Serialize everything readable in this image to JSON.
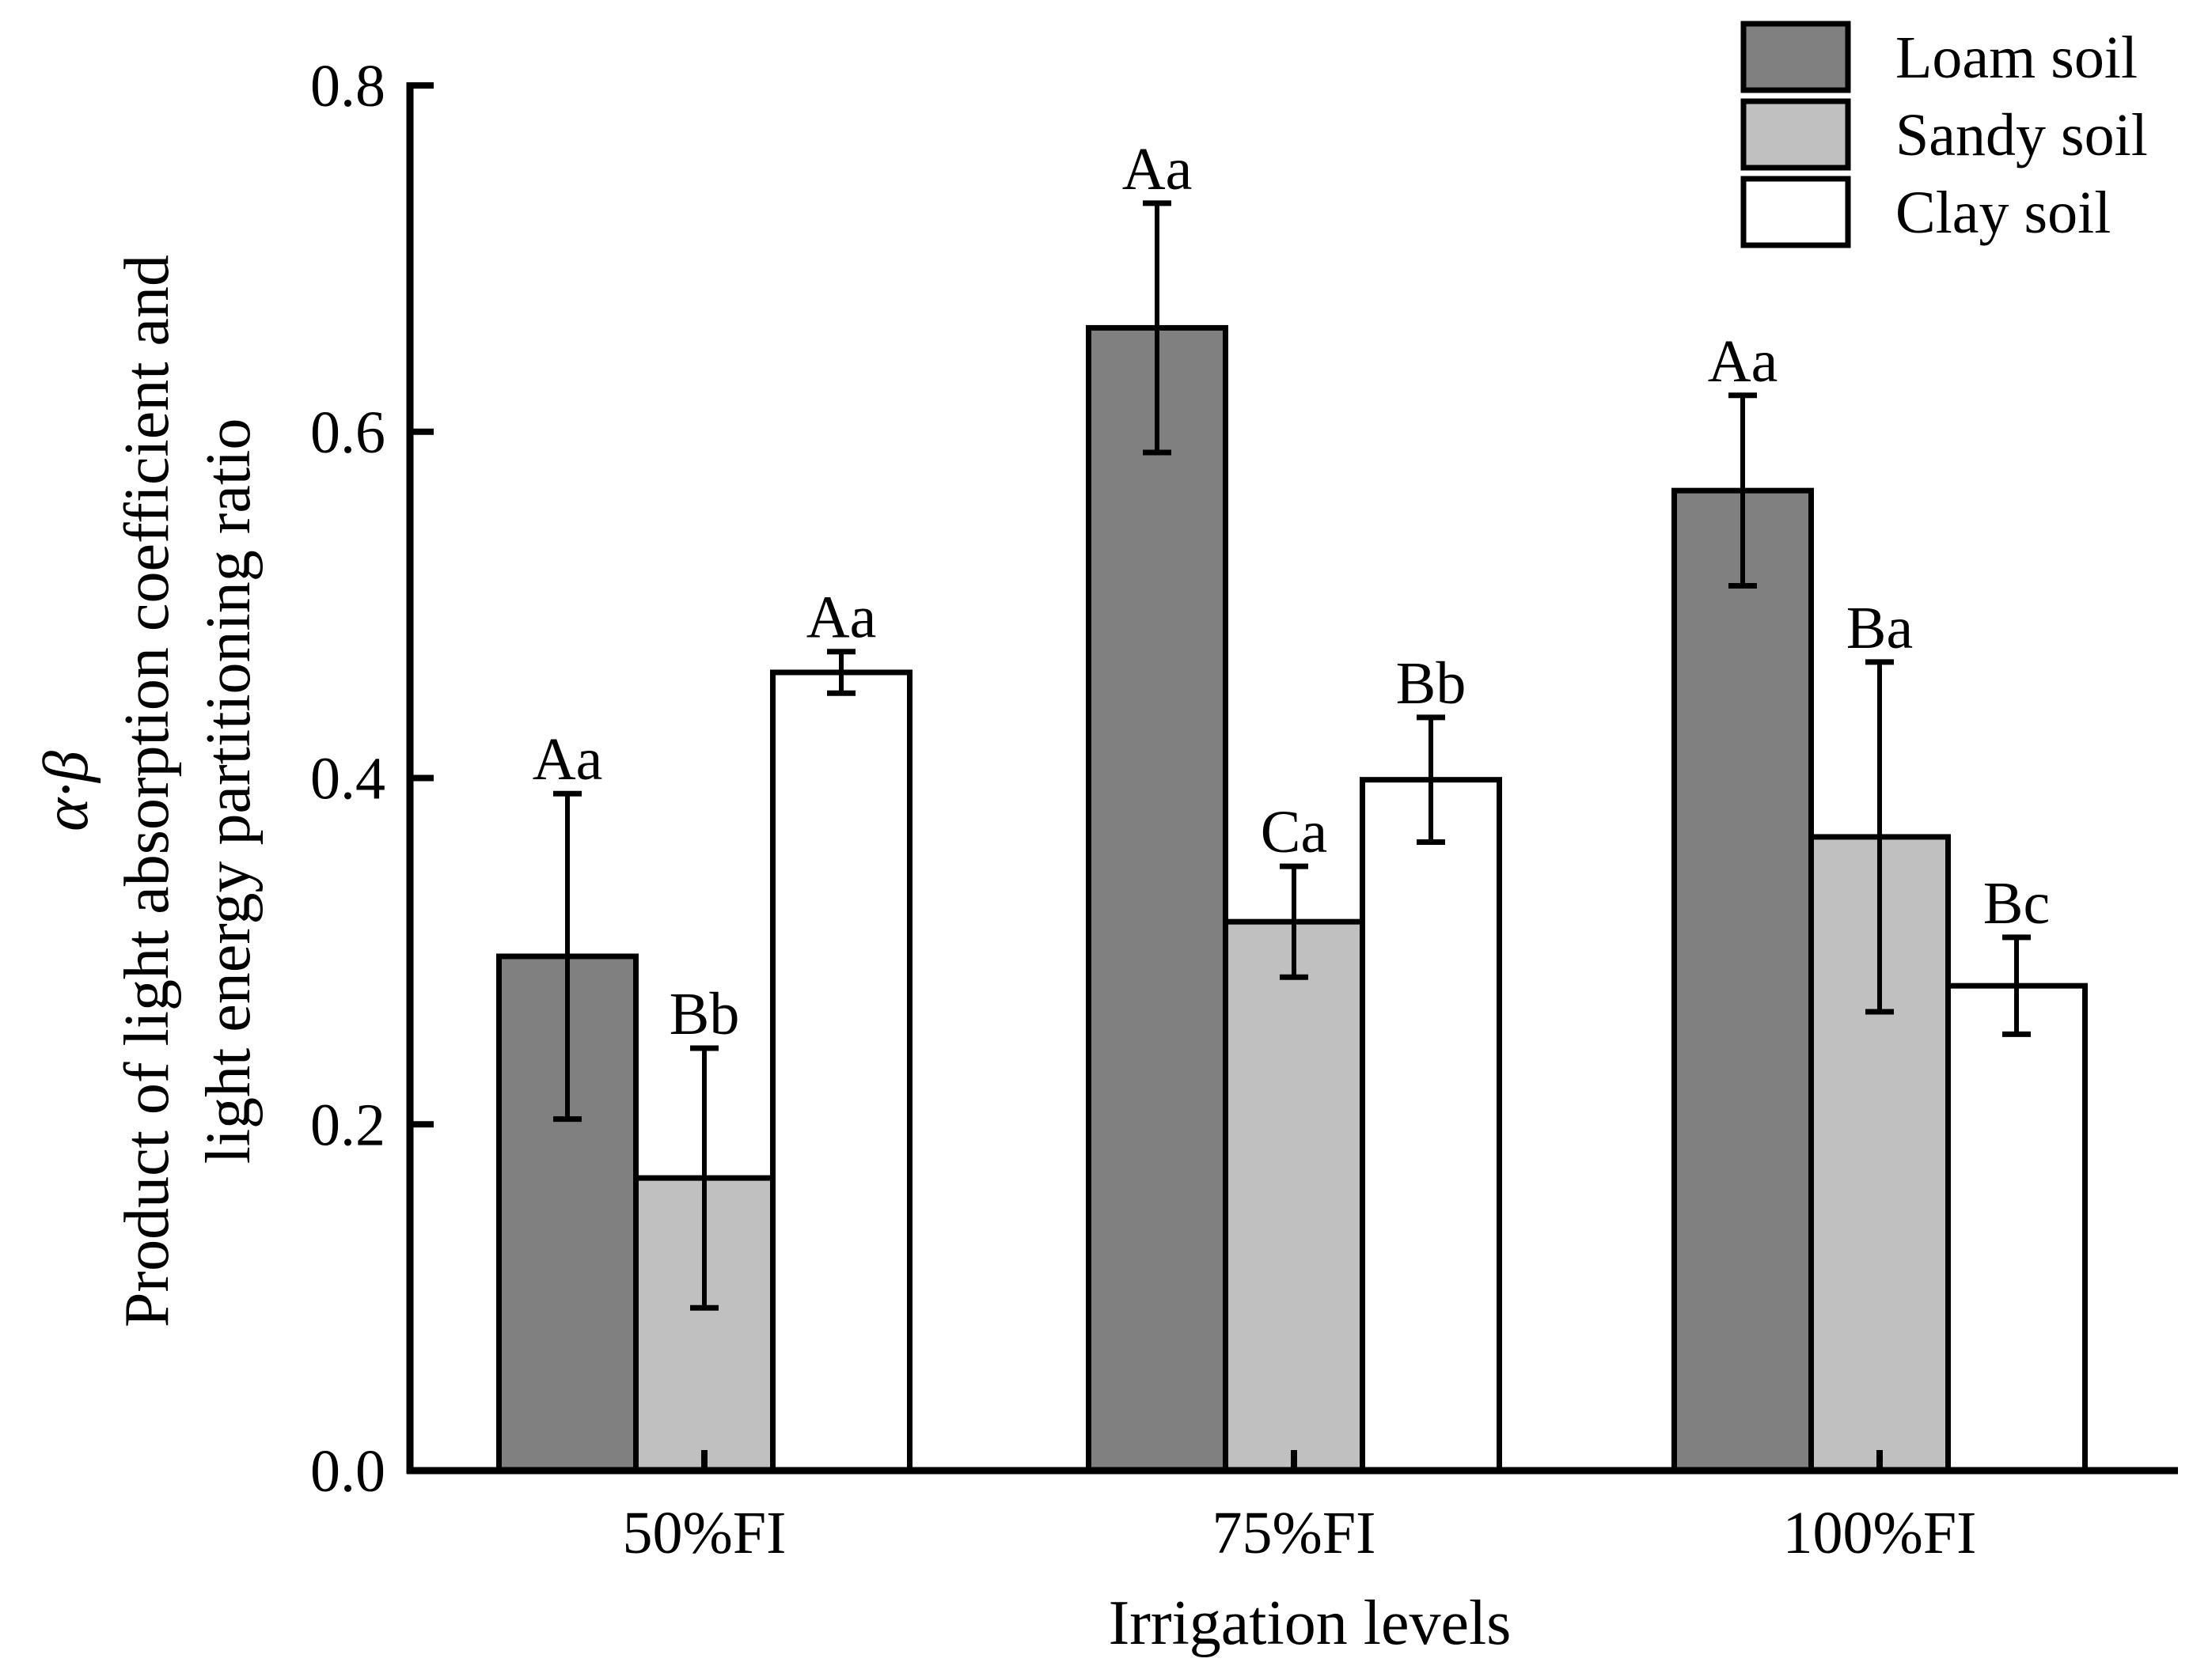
{
  "chart_data": {
    "type": "bar",
    "title": "",
    "xlabel": "Irrigation levels",
    "ylabel_symbol": "α·β",
    "ylabel_line1": "Product of light absorption coefficient and",
    "ylabel_line2": "light energy partitioning ratio",
    "categories": [
      "50%FI",
      "75%FI",
      "100%FI"
    ],
    "ylim": [
      0,
      0.8
    ],
    "yticks": [
      0.0,
      0.2,
      0.4,
      0.6,
      0.8
    ],
    "ytick_labels": [
      "0.0",
      "0.2",
      "0.4",
      "0.6",
      "0.8"
    ],
    "legend_position": "top-right",
    "series": [
      {
        "name": "Loam soil",
        "color": "#808080",
        "values": [
          0.297,
          0.66,
          0.566
        ],
        "errors": [
          0.094,
          0.072,
          0.055
        ],
        "labels": [
          "Aa",
          "Aa",
          "Aa"
        ]
      },
      {
        "name": "Sandy soil",
        "color": "#c0c0c0",
        "values": [
          0.169,
          0.317,
          0.366
        ],
        "errors": [
          0.075,
          0.032,
          0.101
        ],
        "labels": [
          "Bb",
          "Ca",
          "Ba"
        ]
      },
      {
        "name": "Clay soil",
        "color": "#ffffff",
        "values": [
          0.461,
          0.399,
          0.28
        ],
        "errors": [
          0.012,
          0.036,
          0.028
        ],
        "labels": [
          "Aa",
          "Bb",
          "Bc"
        ]
      }
    ]
  }
}
